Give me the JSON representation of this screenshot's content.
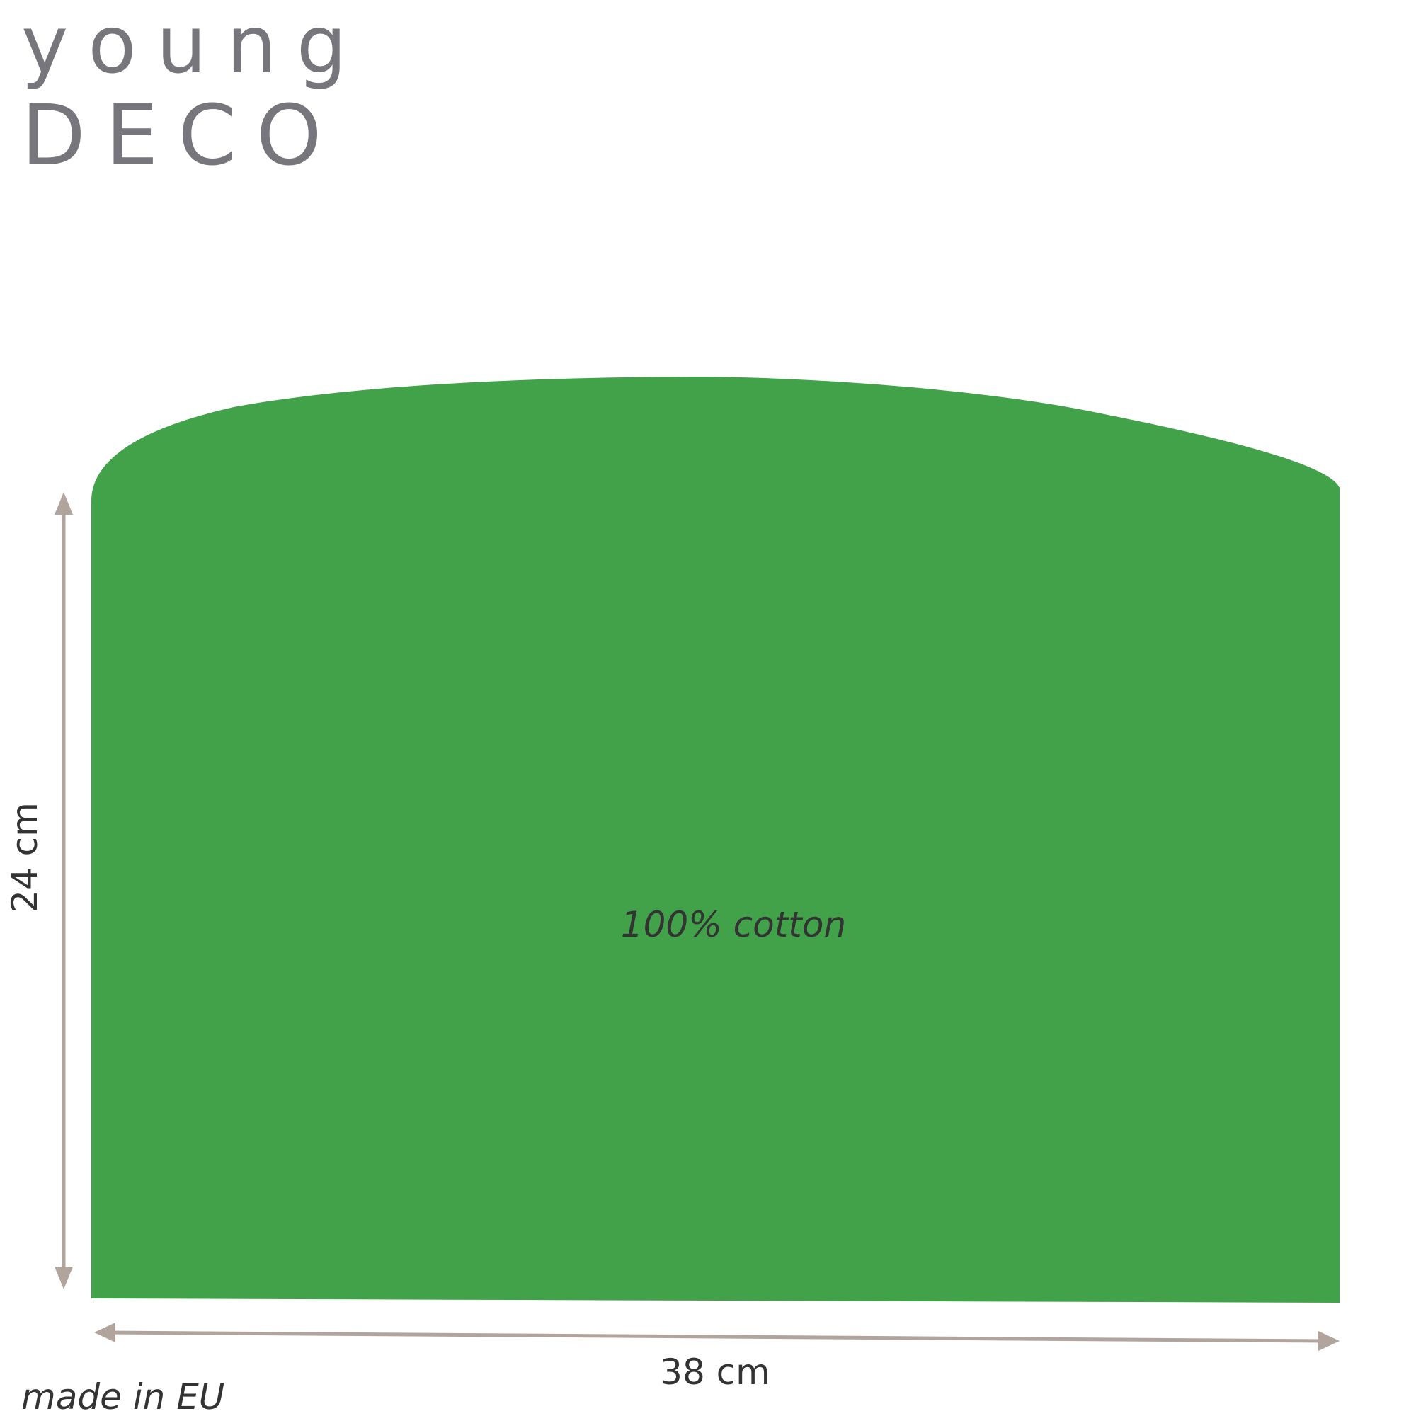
{
  "logo": {
    "line1": "young",
    "line2": "DECO"
  },
  "product": {
    "material_label": "100% cotton",
    "color": "#41a24a"
  },
  "dimensions": {
    "height_label": "24 cm",
    "width_label": "38 cm",
    "arrow_color": "#b0a49c"
  },
  "origin_label": "made in EU"
}
